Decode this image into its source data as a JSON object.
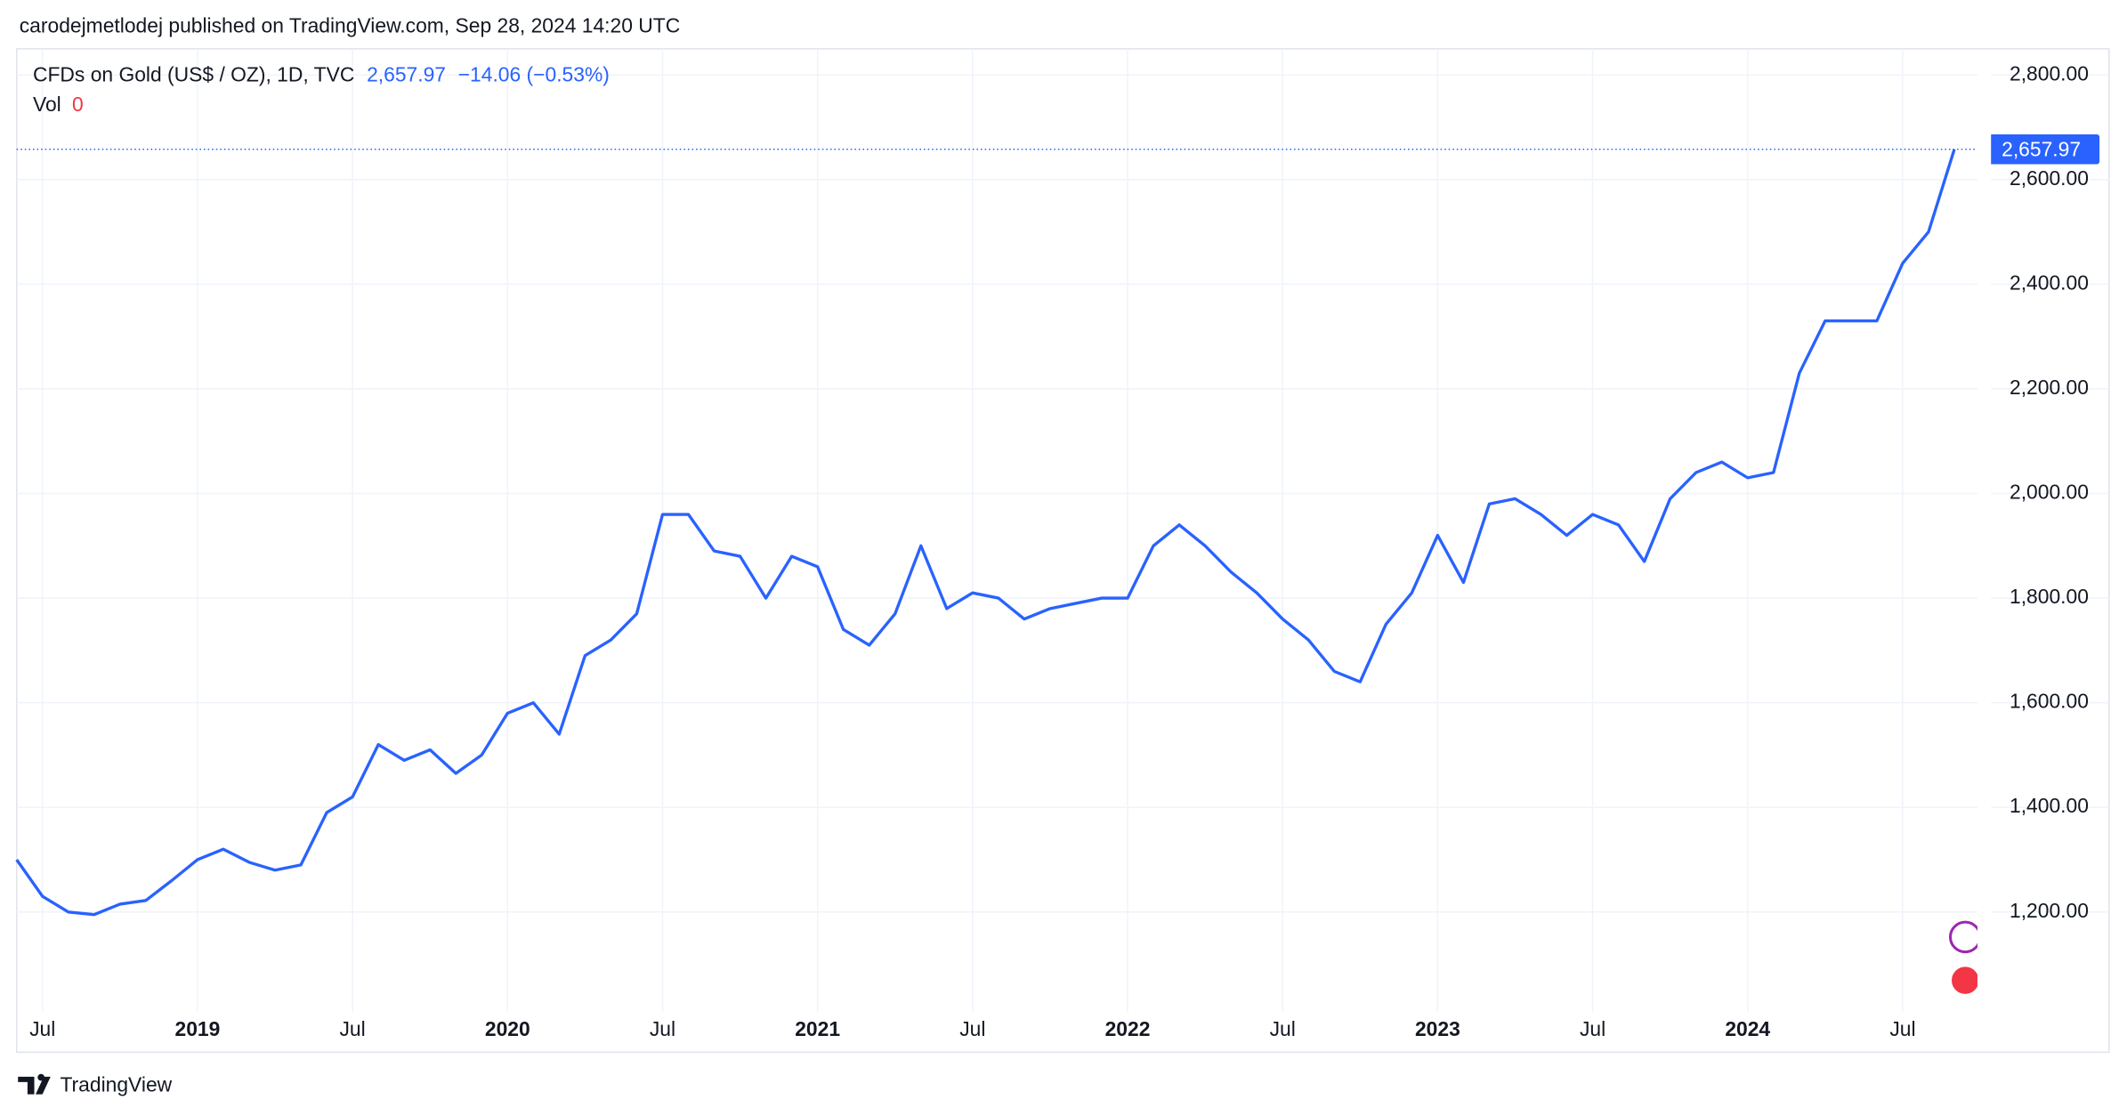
{
  "header": {
    "byline": "carodejmetlodej published on TradingView.com, Sep 28, 2024 14:20 UTC",
    "brand": "TradingView"
  },
  "chart_data": {
    "type": "line",
    "title": "CFDs on Gold (US$ / OZ), 1D, TVC",
    "last_price": 2657.97,
    "last_price_label": "2,657.97",
    "change_label": "−14.06 (−0.53%)",
    "volume_label": "Vol",
    "volume_value": 0,
    "color": "#2962ff",
    "grid": true,
    "x": [
      "2018-06",
      "2018-07",
      "2018-08",
      "2018-09",
      "2018-10",
      "2018-11",
      "2018-12",
      "2019-01",
      "2019-02",
      "2019-03",
      "2019-04",
      "2019-05",
      "2019-06",
      "2019-07",
      "2019-08",
      "2019-09",
      "2019-10",
      "2019-11",
      "2019-12",
      "2020-01",
      "2020-02",
      "2020-03",
      "2020-04",
      "2020-05",
      "2020-06",
      "2020-07",
      "2020-08",
      "2020-09",
      "2020-10",
      "2020-11",
      "2020-12",
      "2021-01",
      "2021-02",
      "2021-03",
      "2021-04",
      "2021-05",
      "2021-06",
      "2021-07",
      "2021-08",
      "2021-09",
      "2021-10",
      "2021-11",
      "2021-12",
      "2022-01",
      "2022-02",
      "2022-03",
      "2022-04",
      "2022-05",
      "2022-06",
      "2022-07",
      "2022-08",
      "2022-09",
      "2022-10",
      "2022-11",
      "2022-12",
      "2023-01",
      "2023-02",
      "2023-03",
      "2023-04",
      "2023-05",
      "2023-06",
      "2023-07",
      "2023-08",
      "2023-09",
      "2023-10",
      "2023-11",
      "2023-12",
      "2024-01",
      "2024-02",
      "2024-03",
      "2024-04",
      "2024-05",
      "2024-06",
      "2024-07",
      "2024-08",
      "2024-09"
    ],
    "series": [
      {
        "values": [
          1300,
          1230,
          1200,
          1195,
          1215,
          1222,
          1260,
          1300,
          1320,
          1295,
          1280,
          1290,
          1390,
          1420,
          1520,
          1490,
          1510,
          1465,
          1500,
          1580,
          1600,
          1540,
          1690,
          1720,
          1770,
          1960,
          1960,
          1890,
          1880,
          1800,
          1880,
          1860,
          1740,
          1710,
          1770,
          1900,
          1780,
          1810,
          1800,
          1760,
          1780,
          1790,
          1800,
          1800,
          1900,
          1940,
          1900,
          1850,
          1810,
          1760,
          1720,
          1660,
          1640,
          1750,
          1810,
          1920,
          1830,
          1980,
          1990,
          1960,
          1920,
          1960,
          1940,
          1870,
          1990,
          2040,
          2060,
          2030,
          2040,
          2230,
          2330,
          2330,
          2330,
          2440,
          2500,
          2657.97
        ]
      }
    ],
    "xlim": [
      "2018-06",
      "2024-10"
    ],
    "xticks": [
      {
        "value": "2018-07",
        "label": "Jul"
      },
      {
        "value": "2019-01",
        "label": "2019"
      },
      {
        "value": "2019-07",
        "label": "Jul"
      },
      {
        "value": "2020-01",
        "label": "2020"
      },
      {
        "value": "2020-07",
        "label": "Jul"
      },
      {
        "value": "2021-01",
        "label": "2021"
      },
      {
        "value": "2021-07",
        "label": "Jul"
      },
      {
        "value": "2022-01",
        "label": "2022"
      },
      {
        "value": "2022-07",
        "label": "Jul"
      },
      {
        "value": "2023-01",
        "label": "2023"
      },
      {
        "value": "2023-07",
        "label": "Jul"
      },
      {
        "value": "2024-01",
        "label": "2024"
      },
      {
        "value": "2024-07",
        "label": "Jul"
      }
    ],
    "ylim": [
      1020,
      2850
    ],
    "yticks": [
      {
        "value": 1200,
        "label": "1,200.00"
      },
      {
        "value": 1400,
        "label": "1,400.00"
      },
      {
        "value": 1600,
        "label": "1,600.00"
      },
      {
        "value": 1800,
        "label": "1,800.00"
      },
      {
        "value": 2000,
        "label": "2,000.00"
      },
      {
        "value": 2200,
        "label": "2,200.00"
      },
      {
        "value": 2400,
        "label": "2,400.00"
      },
      {
        "value": 2600,
        "label": "2,600.00"
      },
      {
        "value": 2800,
        "label": "2,800.00"
      }
    ]
  }
}
